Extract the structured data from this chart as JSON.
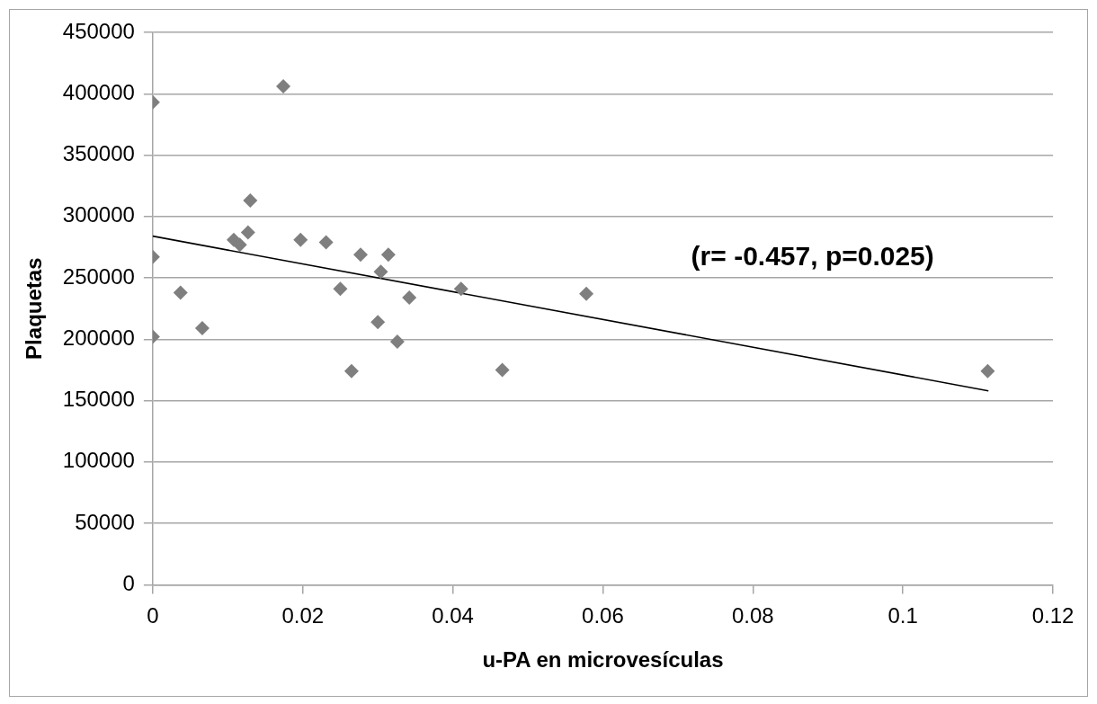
{
  "chart_data": {
    "type": "scatter",
    "xlabel": "u-PA en microvesículas",
    "ylabel": "Plaquetas",
    "xlim": [
      0,
      0.12
    ],
    "xticks": [
      0,
      0.02,
      0.04,
      0.06,
      0.08,
      0.1,
      0.12
    ],
    "ylim": [
      0,
      450000
    ],
    "yticks": [
      0,
      50000,
      100000,
      150000,
      200000,
      250000,
      300000,
      350000,
      400000,
      450000
    ],
    "grid": "y",
    "legend": false,
    "annotations": [
      "(r= -0.457, p=0.025)"
    ],
    "series": [
      {
        "color": "#7f7f7f",
        "marker": "diamond",
        "x": [
          0,
          0.0174,
          0,
          0,
          0.0037,
          0.0066,
          0.0108,
          0.0116,
          0.0127,
          0.013,
          0.0197,
          0.0231,
          0.025,
          0.0265,
          0.0277,
          0.03,
          0.0304,
          0.0314,
          0.0326,
          0.0342,
          0.0411,
          0.0466,
          0.0578,
          0.1113
        ],
        "values": [
          393000,
          406000,
          267000,
          202000,
          238000,
          209000,
          281000,
          277000,
          287000,
          313000,
          281000,
          279000,
          241000,
          174000,
          269000,
          214000,
          255000,
          269000,
          198000,
          234000,
          241000,
          175000,
          237000,
          174000
        ]
      },
      {
        "type": "line",
        "color": "#000000",
        "marker": "none",
        "line_style": "solid",
        "x": [
          0,
          0.1114
        ],
        "values": [
          284000,
          158000
        ]
      }
    ]
  }
}
